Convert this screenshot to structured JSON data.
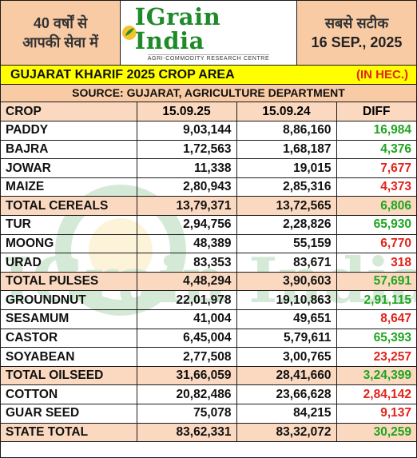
{
  "header": {
    "left_line1": "40 वर्षों से",
    "left_line2": "आपकी सेवा में",
    "logo_text": "IGrain India",
    "logo_sub": "AGRI-COMMODITY RESEARCH CENTRE",
    "right_line1": "सबसे सटीक",
    "right_date": "16 SEP., 2025"
  },
  "title": "GUJARAT KHARIF 2025 CROP AREA",
  "unit": "(IN HEC.)",
  "source": "SOURCE: GUJARAT, AGRICULTURE DEPARTMENT",
  "watermark_text": "IGrain India",
  "colors": {
    "positive": "#1ea51e",
    "negative": "#e2231a",
    "title_bg": "#ffff00",
    "accent_bg": "#f9cba5"
  },
  "table": {
    "headers": [
      "CROP",
      "15.09.25",
      "15.09.24",
      "DIFF"
    ],
    "rows": [
      {
        "crop": "PADDY",
        "v2025": "9,03,144",
        "v2024": "8,86,160",
        "diff": "16,984",
        "sign": "pos",
        "total": false
      },
      {
        "crop": "BAJRA",
        "v2025": "1,72,563",
        "v2024": "1,68,187",
        "diff": "4,376",
        "sign": "pos",
        "total": false
      },
      {
        "crop": "JOWAR",
        "v2025": "11,338",
        "v2024": "19,015",
        "diff": "7,677",
        "sign": "neg",
        "total": false
      },
      {
        "crop": "MAIZE",
        "v2025": "2,80,943",
        "v2024": "2,85,316",
        "diff": "4,373",
        "sign": "neg",
        "total": false
      },
      {
        "crop": "TOTAL CEREALS",
        "v2025": "13,79,371",
        "v2024": "13,72,565",
        "diff": "6,806",
        "sign": "pos",
        "total": true
      },
      {
        "crop": "TUR",
        "v2025": "2,94,756",
        "v2024": "2,28,826",
        "diff": "65,930",
        "sign": "pos",
        "total": false
      },
      {
        "crop": "MOONG",
        "v2025": "48,389",
        "v2024": "55,159",
        "diff": "6,770",
        "sign": "neg",
        "total": false
      },
      {
        "crop": "URAD",
        "v2025": "83,353",
        "v2024": "83,671",
        "diff": "318",
        "sign": "neg",
        "total": false
      },
      {
        "crop": "TOTAL PULSES",
        "v2025": "4,48,294",
        "v2024": "3,90,603",
        "diff": "57,691",
        "sign": "pos",
        "total": true
      },
      {
        "crop": "GROUNDNUT",
        "v2025": "22,01,978",
        "v2024": "19,10,863",
        "diff": "2,91,115",
        "sign": "pos",
        "total": false
      },
      {
        "crop": "SESAMUM",
        "v2025": "41,004",
        "v2024": "49,651",
        "diff": "8,647",
        "sign": "neg",
        "total": false
      },
      {
        "crop": "CASTOR",
        "v2025": "6,45,004",
        "v2024": "5,79,611",
        "diff": "65,393",
        "sign": "pos",
        "total": false
      },
      {
        "crop": "SOYABEAN",
        "v2025": "2,77,508",
        "v2024": "3,00,765",
        "diff": "23,257",
        "sign": "neg",
        "total": false
      },
      {
        "crop": "TOTAL OILSEED",
        "v2025": "31,66,059",
        "v2024": "28,41,660",
        "diff": "3,24,399",
        "sign": "pos",
        "total": true
      },
      {
        "crop": "COTTON",
        "v2025": "20,82,486",
        "v2024": "23,66,628",
        "diff": "2,84,142",
        "sign": "neg",
        "total": false
      },
      {
        "crop": "GUAR SEED",
        "v2025": "75,078",
        "v2024": "84,215",
        "diff": "9,137",
        "sign": "neg",
        "total": false
      },
      {
        "crop": "STATE TOTAL",
        "v2025": "83,62,331",
        "v2024": "83,32,072",
        "diff": "30,259",
        "sign": "pos",
        "total": true
      }
    ]
  }
}
